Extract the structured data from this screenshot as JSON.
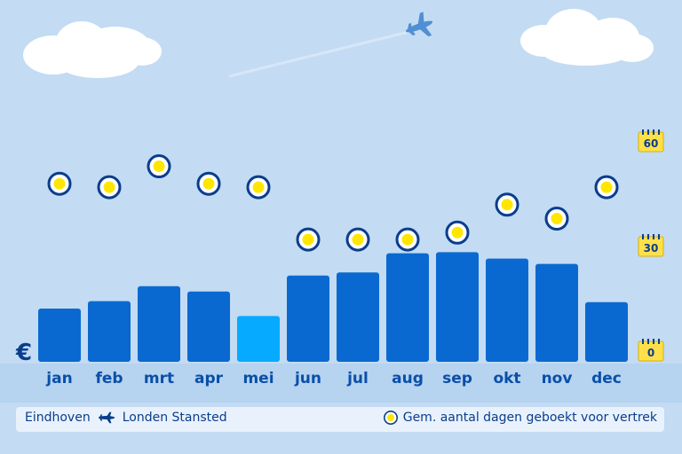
{
  "chart_data": {
    "type": "bar",
    "categories": [
      "jan",
      "feb",
      "mrt",
      "apr",
      "mei",
      "jun",
      "jul",
      "aug",
      "sep",
      "okt",
      "nov",
      "dec"
    ],
    "series": [
      {
        "values": [
          50,
          57,
          71,
          66,
          43,
          81,
          84,
          102,
          103,
          97,
          92,
          56
        ]
      },
      {
        "name": "Gem. aantal dagen geboekt voor vertrek",
        "values": [
          48,
          47,
          53,
          48,
          47,
          32,
          32,
          32,
          34,
          42,
          38,
          47
        ]
      }
    ],
    "highlight_category": "mei",
    "y_axis_unit": "€",
    "y2_ticks": [
      "60",
      "30",
      "0"
    ],
    "y2lim": [
      0,
      60
    ],
    "colors": {
      "bars": "#0a69d0",
      "highlight": "#06aaff",
      "marker_ring": "#0a3d8c",
      "marker_fill": "#ffe600",
      "calendar": "#ffe04a"
    }
  },
  "footer": {
    "origin": "Eindhoven",
    "destination": "Londen Stansted",
    "route_icon": "airplane-icon",
    "legend_label": "Gem. aantal dagen geboekt voor vertrek"
  }
}
